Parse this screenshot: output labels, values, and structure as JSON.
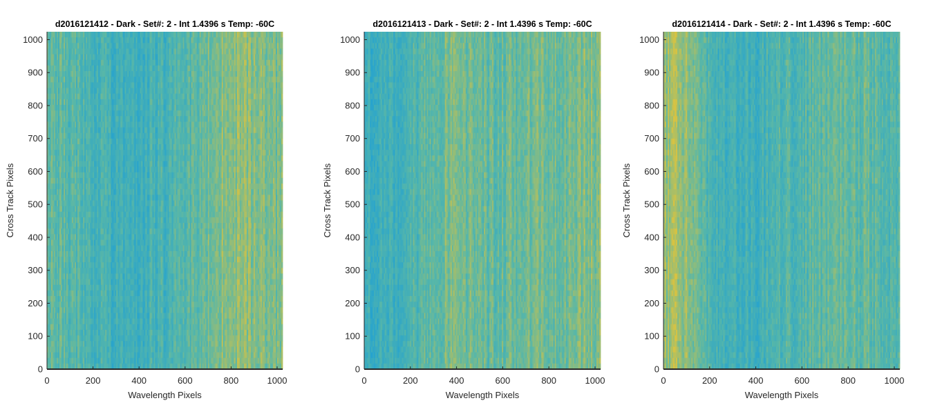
{
  "figure": {
    "colors": {
      "low": "#1c9fd6",
      "mid": "#58b7a8",
      "high": "#dcc33e",
      "axis": "#262626"
    }
  },
  "chart_data": [
    {
      "type": "heatmap",
      "title": "d2016121412 - Dark - Set#: 2 - Int 1.4396 s Temp: -60C",
      "xlabel": "Wavelength Pixels",
      "ylabel": "Cross Track Pixels",
      "xlim": [
        0,
        1024
      ],
      "ylim": [
        0,
        1024
      ],
      "xticks": [
        0,
        200,
        400,
        600,
        800,
        1000
      ],
      "yticks": [
        0,
        100,
        200,
        300,
        400,
        500,
        600,
        700,
        800,
        900,
        1000
      ],
      "column_profile": {
        "x": [
          0,
          50,
          100,
          150,
          200,
          250,
          300,
          350,
          400,
          450,
          500,
          550,
          600,
          650,
          700,
          750,
          800,
          850,
          900,
          950,
          1024
        ],
        "level": [
          0.55,
          0.52,
          0.48,
          0.42,
          0.38,
          0.35,
          0.33,
          0.32,
          0.33,
          0.35,
          0.37,
          0.4,
          0.45,
          0.5,
          0.58,
          0.66,
          0.7,
          0.7,
          0.68,
          0.66,
          0.62
        ]
      }
    },
    {
      "type": "heatmap",
      "title": "d2016121413 - Dark - Set#: 2 - Int 1.4396 s Temp: -60C",
      "xlabel": "Wavelength Pixels",
      "ylabel": "Cross Track Pixels",
      "xlim": [
        0,
        1024
      ],
      "ylim": [
        0,
        1024
      ],
      "xticks": [
        0,
        200,
        400,
        600,
        800,
        1000
      ],
      "yticks": [
        0,
        100,
        200,
        300,
        400,
        500,
        600,
        700,
        800,
        900,
        1000
      ],
      "column_profile": {
        "x": [
          0,
          50,
          100,
          150,
          200,
          250,
          300,
          350,
          400,
          450,
          500,
          550,
          600,
          650,
          700,
          750,
          800,
          850,
          900,
          950,
          1024
        ],
        "level": [
          0.32,
          0.3,
          0.3,
          0.33,
          0.38,
          0.45,
          0.55,
          0.62,
          0.65,
          0.6,
          0.55,
          0.52,
          0.55,
          0.58,
          0.6,
          0.6,
          0.58,
          0.6,
          0.64,
          0.66,
          0.66
        ]
      }
    },
    {
      "type": "heatmap",
      "title": "d2016121414 - Dark - Set#: 2 - Int 1.4396 s Temp: -60C",
      "xlabel": "Wavelength Pixels",
      "ylabel": "Cross Track Pixels",
      "xlim": [
        0,
        1024
      ],
      "ylim": [
        0,
        1024
      ],
      "xticks": [
        0,
        200,
        400,
        600,
        800,
        1000
      ],
      "yticks": [
        0,
        100,
        200,
        300,
        400,
        500,
        600,
        700,
        800,
        900,
        1000
      ],
      "column_profile": {
        "x": [
          0,
          50,
          100,
          150,
          200,
          250,
          300,
          350,
          400,
          450,
          500,
          550,
          600,
          650,
          700,
          750,
          800,
          850,
          900,
          950,
          1024
        ],
        "level": [
          0.7,
          0.78,
          0.74,
          0.58,
          0.42,
          0.36,
          0.33,
          0.32,
          0.34,
          0.38,
          0.42,
          0.44,
          0.46,
          0.5,
          0.52,
          0.55,
          0.58,
          0.56,
          0.5,
          0.45,
          0.42
        ]
      }
    }
  ]
}
